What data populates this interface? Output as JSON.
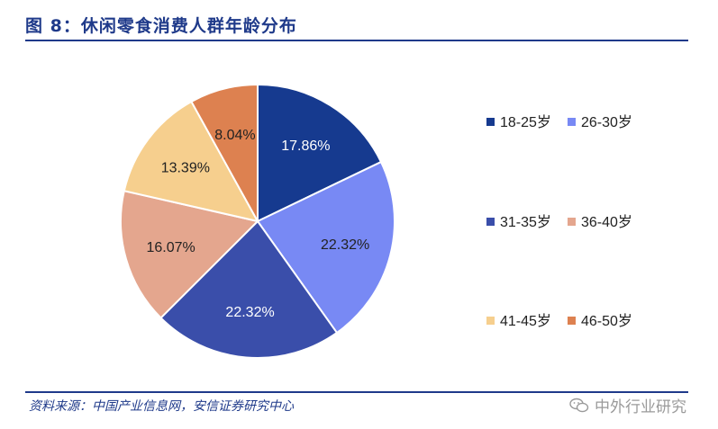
{
  "header": {
    "title": "图 8：休闲零食消费人群年龄分布"
  },
  "footer": {
    "source": "资料来源：中国产业信息网，安信证券研究中心"
  },
  "watermark": {
    "text": "中外行业研究",
    "icon": "wechat-icon",
    "color": "#9a9a9a"
  },
  "colors": {
    "rule": "#1f3a8a"
  },
  "chart_data": {
    "type": "pie",
    "title": "",
    "legend_position": "right",
    "series": [
      {
        "name": "18-25岁",
        "value": 17.86,
        "label": "17.86%",
        "color": "#163a8f"
      },
      {
        "name": "26-30岁",
        "value": 22.32,
        "label": "22.32%",
        "color": "#7889f4"
      },
      {
        "name": "31-35岁",
        "value": 22.32,
        "label": "22.32%",
        "color": "#3a4eaa"
      },
      {
        "name": "36-40岁",
        "value": 16.07,
        "label": "16.07%",
        "color": "#e4a68e"
      },
      {
        "name": "41-45岁",
        "value": 13.39,
        "label": "13.39%",
        "color": "#f6cf8e"
      },
      {
        "name": "46-50岁",
        "value": 8.04,
        "label": "8.04%",
        "color": "#dd8150"
      }
    ]
  }
}
